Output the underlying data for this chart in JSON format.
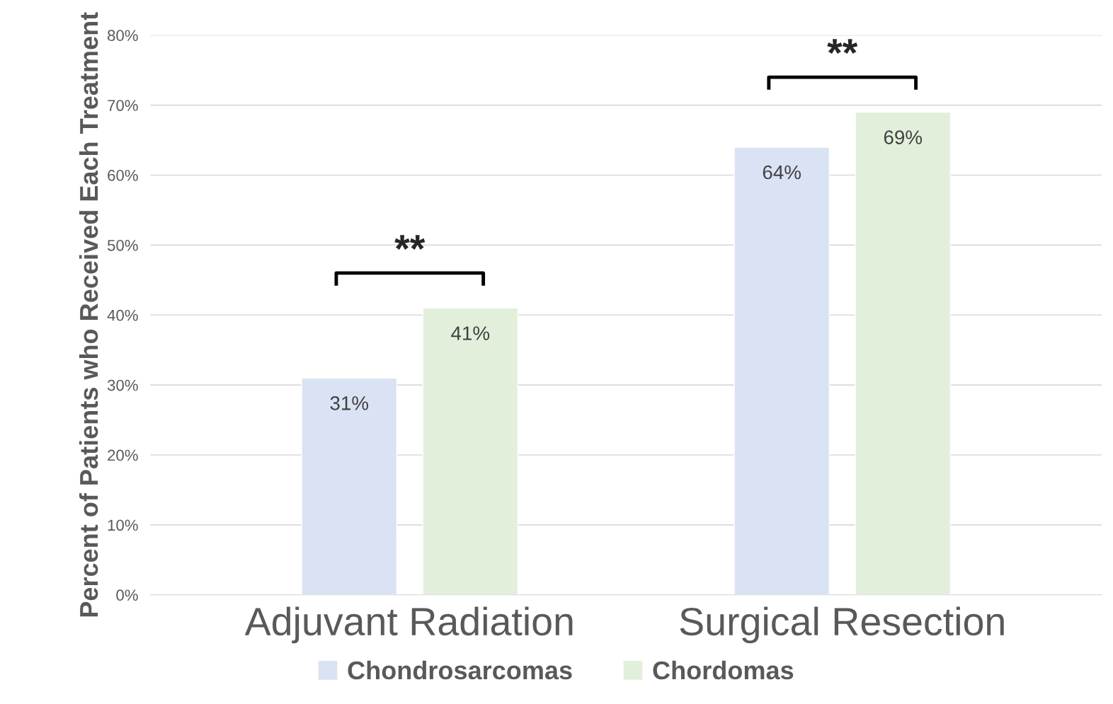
{
  "chart_data": {
    "type": "bar",
    "categories": [
      "Adjuvant Radiation",
      "Surgical Resection"
    ],
    "ylabel": "Percent of Patients who Received Each Treatment",
    "series": [
      {
        "name": "Chondrosarcomas",
        "color": "#dae3f3",
        "values": [
          31,
          64
        ],
        "value_labels": [
          "31%",
          "64%"
        ]
      },
      {
        "name": "Chordomas",
        "color": "#e2efda",
        "values": [
          41,
          69
        ],
        "value_labels": [
          "41%",
          "69%"
        ]
      }
    ],
    "ylim": [
      0,
      80
    ],
    "yticks": [
      {
        "value": 0,
        "label": "0%"
      },
      {
        "value": 10,
        "label": "10%"
      },
      {
        "value": 20,
        "label": "20%"
      },
      {
        "value": 30,
        "label": "30%"
      },
      {
        "value": 40,
        "label": "40%"
      },
      {
        "value": 50,
        "label": "50%"
      },
      {
        "value": 60,
        "label": "60%"
      },
      {
        "value": 70,
        "label": "70%"
      },
      {
        "value": 80,
        "label": "80%"
      }
    ],
    "grid": "y",
    "legend": "bottom",
    "annotations": [
      "**",
      "**"
    ]
  }
}
